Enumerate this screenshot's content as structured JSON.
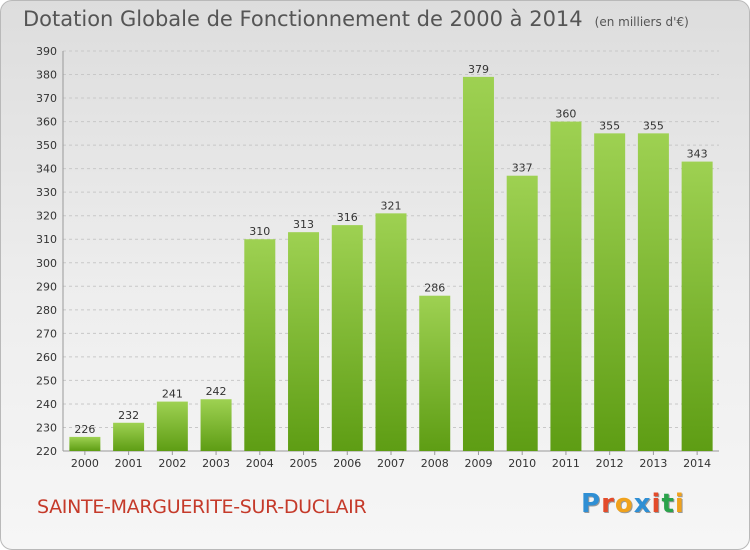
{
  "header": {
    "title": "Dotation Globale de Fonctionnement de 2000 à 2014",
    "unit": "(en milliers d'€)"
  },
  "footer": {
    "commune": "SAINTE-MARGUERITE-SUR-DUCLAIR",
    "logo_letters": [
      "P",
      "r",
      "o",
      "x",
      "i",
      "t",
      "i"
    ],
    "logo_colors": [
      "#2f8fd4",
      "#e34b2a",
      "#f0a21c",
      "#2f8fd4",
      "#e34b2a",
      "#2aa34b",
      "#f0a21c"
    ]
  },
  "colors": {
    "bar_top": "#9ed152",
    "bar_bottom": "#5e9d14",
    "grid": "#c8c8c8",
    "text": "#333333"
  },
  "chart_data": {
    "type": "bar",
    "categories": [
      "2000",
      "2001",
      "2002",
      "2003",
      "2004",
      "2005",
      "2006",
      "2007",
      "2008",
      "2009",
      "2010",
      "2011",
      "2012",
      "2013",
      "2014"
    ],
    "values": [
      226,
      232,
      241,
      242,
      310,
      313,
      316,
      321,
      286,
      379,
      337,
      360,
      355,
      355,
      343
    ],
    "ylim": [
      220,
      390
    ],
    "yticks": [
      220,
      230,
      240,
      250,
      260,
      270,
      280,
      290,
      300,
      310,
      320,
      330,
      340,
      350,
      360,
      370,
      380,
      390
    ],
    "grid": true,
    "data_labels": true
  }
}
